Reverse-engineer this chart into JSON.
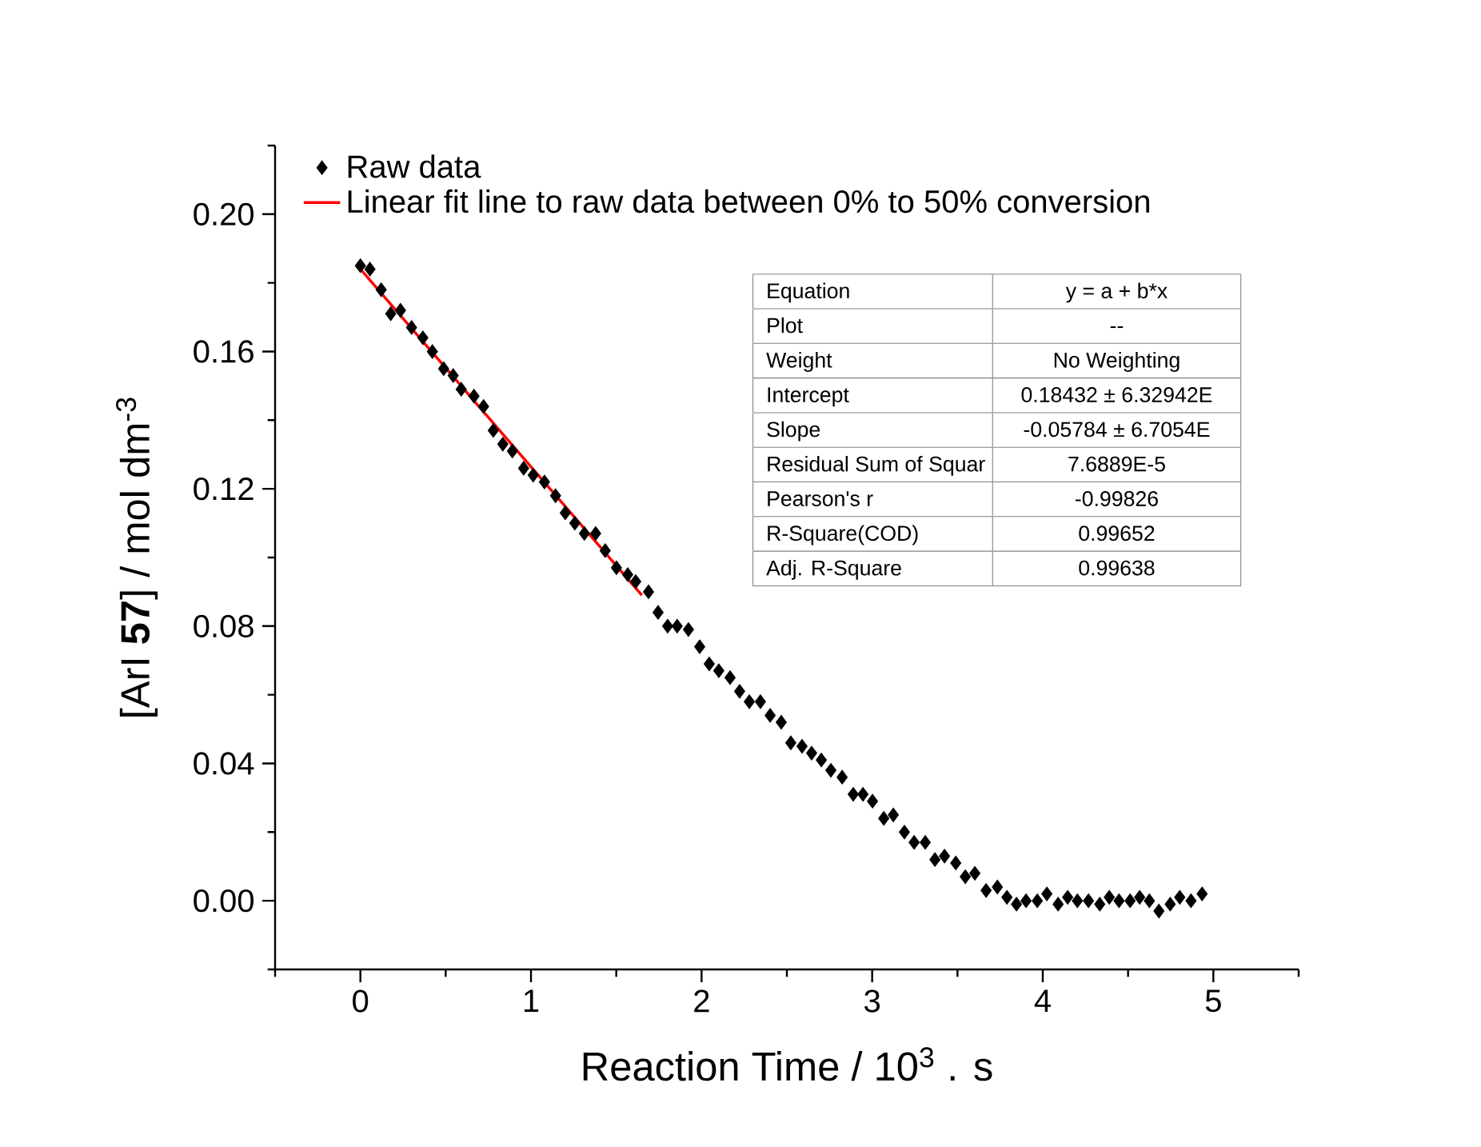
{
  "chart_data": {
    "type": "scatter",
    "xlabel": "Reaction Time / 10$^{3}$ . s",
    "ylabel": "[ArI **57**] / mol dm$^{-3}$",
    "xlim": [
      -0.5,
      5.5
    ],
    "ylim": [
      -0.02,
      0.22
    ],
    "xticks": [
      {
        "value": -0.5,
        "label": null
      },
      0,
      {
        "value": 0.5,
        "label": null
      },
      1,
      {
        "value": 1.5,
        "label": null
      },
      2,
      {
        "value": 2.5,
        "label": null
      },
      3,
      {
        "value": 3.5,
        "label": null
      },
      4,
      {
        "value": 4.5,
        "label": null
      },
      5,
      {
        "value": 5.5,
        "label": null
      }
    ],
    "yticks": [
      {
        "value": -0.02,
        "label": null
      },
      {
        "value": 0,
        "label": "0.00"
      },
      {
        "value": 0.02,
        "label": null
      },
      {
        "value": 0.04,
        "label": "0.04"
      },
      {
        "value": 0.06,
        "label": null
      },
      {
        "value": 0.08,
        "label": "0.08"
      },
      {
        "value": 0.1,
        "label": null
      },
      {
        "value": 0.12,
        "label": "0.12"
      },
      {
        "value": 0.14,
        "label": null
      },
      {
        "value": 0.16,
        "label": "0.16"
      },
      {
        "value": 0.18,
        "label": null
      },
      {
        "value": 0.2,
        "label": "0.20"
      },
      {
        "value": 0.22,
        "label": null
      }
    ],
    "marker": "diamond",
    "legend": "top left",
    "annotations": [
      "Equation",
      "y = a + b*x",
      "Plot",
      "--",
      "Weight",
      "No Weighting",
      "Intercept",
      "0.18432 ± 6.32942E",
      "Slope",
      "-0.05784 ± 6.7054E",
      "Residual Sum of Squar",
      "7.6889E-5",
      "Pearson's r",
      "-0.99826",
      "R-Square(COD)",
      "0.99652",
      "Adj. R-Square",
      "0.99638"
    ],
    "series": [
      {
        "name": "Raw data",
        "type": "scatter",
        "color": "#000000",
        "x": [
          0,
          0.056,
          0.122,
          0.178,
          0.235,
          0.3,
          0.366,
          0.422,
          0.488,
          0.544,
          0.591,
          0.666,
          0.722,
          0.779,
          0.835,
          0.891,
          0.957,
          1.013,
          1.079,
          1.144,
          1.201,
          1.257,
          1.313,
          1.379,
          1.435,
          1.501,
          1.567,
          1.614,
          1.689,
          1.745,
          1.801,
          1.857,
          1.923,
          1.989,
          2.045,
          2.101,
          2.167,
          2.223,
          2.28,
          2.345,
          2.402,
          2.467,
          2.523,
          2.589,
          2.645,
          2.702,
          2.758,
          2.824,
          2.889,
          2.946,
          3.002,
          3.068,
          3.124,
          3.189,
          3.246,
          3.311,
          3.368,
          3.424,
          3.49,
          3.546,
          3.602,
          3.668,
          3.734,
          3.79,
          3.846,
          3.902,
          3.968,
          4.024,
          4.09,
          4.146,
          4.203,
          4.268,
          4.334,
          4.39,
          4.447,
          4.512,
          4.568,
          4.625,
          4.681,
          4.747,
          4.803,
          4.869,
          4.934
        ],
        "values": [
          0.185,
          0.184,
          0.178,
          0.171,
          0.172,
          0.167,
          0.164,
          0.16,
          0.155,
          0.153,
          0.149,
          0.147,
          0.144,
          0.137,
          0.133,
          0.131,
          0.126,
          0.124,
          0.122,
          0.118,
          0.113,
          0.11,
          0.107,
          0.107,
          0.102,
          0.097,
          0.095,
          0.093,
          0.09,
          0.084,
          0.08,
          0.08,
          0.079,
          0.074,
          0.069,
          0.067,
          0.065,
          0.061,
          0.058,
          0.058,
          0.054,
          0.052,
          0.046,
          0.045,
          0.043,
          0.041,
          0.038,
          0.036,
          0.031,
          0.031,
          0.029,
          0.024,
          0.025,
          0.02,
          0.017,
          0.017,
          0.012,
          0.013,
          0.011,
          0.007,
          0.008,
          0.003,
          0.004,
          0.001,
          -0.001,
          0,
          0,
          0.002,
          -0.001,
          0.001,
          0,
          0,
          -0.001,
          0.001,
          0,
          0,
          0.001,
          0,
          -0.003,
          -0.001,
          0.001,
          0,
          0.002
        ]
      },
      {
        "name": "Linear fit line to raw data between 0% to 50% conversion",
        "type": "line",
        "color": "#ff0000",
        "marker": "none",
        "line_style": "solid",
        "x": [
          0,
          1.65
        ],
        "values": [
          0.184,
          0.089
        ]
      }
    ]
  }
}
